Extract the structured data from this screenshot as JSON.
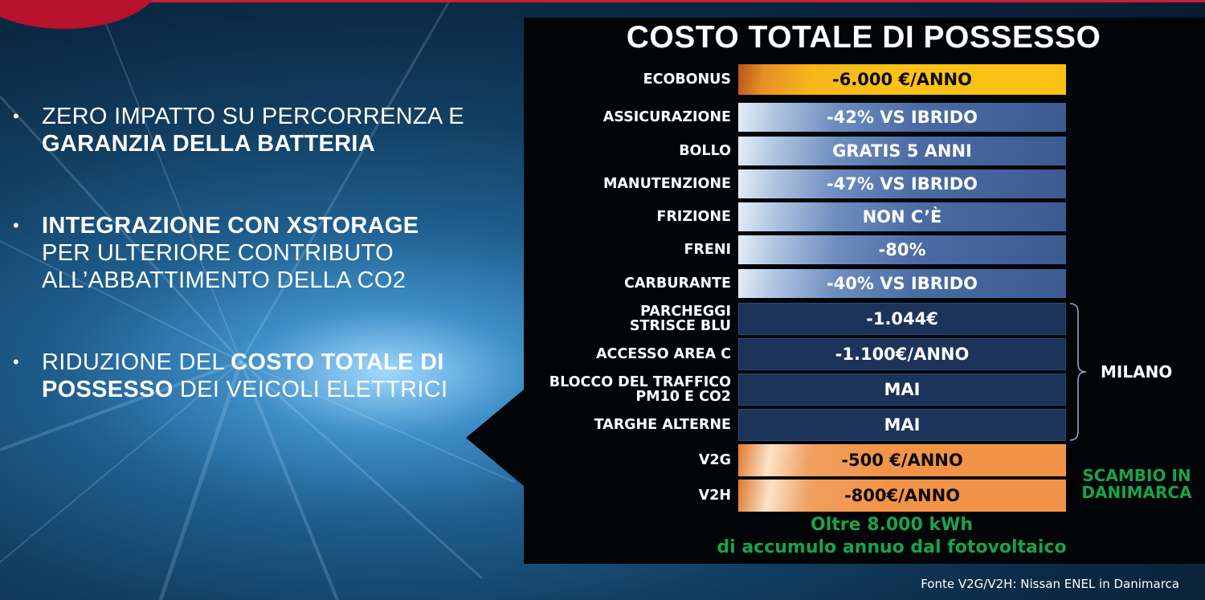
{
  "bullets": [
    {
      "lines": [
        [
          {
            "t": "ZERO IMPATTO SU PERCORRENZA E",
            "b": false
          }
        ],
        [
          {
            "t": "GARANZIA DELLA BATTERIA",
            "b": true
          }
        ]
      ]
    },
    {
      "lines": [
        [
          {
            "t": "INTEGRAZIONE CON XSTORAGE",
            "b": true
          }
        ],
        [
          {
            "t": "PER ULTERIORE CONTRIBUTO",
            "b": false
          }
        ],
        [
          {
            "t": "ALL’ABBATTIMENTO DELLA CO2",
            "b": false
          }
        ]
      ]
    },
    {
      "lines": [
        [
          {
            "t": "RIDUZIONE DEL ",
            "b": false
          },
          {
            "t": "COSTO TOTALE DI",
            "b": true
          }
        ],
        [
          {
            "t": "POSSESSO",
            "b": true
          },
          {
            "t": " DEI VEICOLI ELETTRICI",
            "b": false
          }
        ]
      ]
    }
  ],
  "bullet_symbol": "•",
  "table": {
    "title": "COSTO TOTALE DI POSSESSO",
    "rows": [
      {
        "label": [
          "ECOBONUS"
        ],
        "value": "-6.000 €/ANNO",
        "style": "yellow"
      },
      {
        "label": [
          "ASSICURAZIONE"
        ],
        "value": "-42% VS IBRIDO",
        "style": "blue"
      },
      {
        "label": [
          "BOLLO"
        ],
        "value": "GRATIS 5 ANNI",
        "style": "blue"
      },
      {
        "label": [
          "MANUTENZIONE"
        ],
        "value": "-47% VS IBRIDO",
        "style": "blue"
      },
      {
        "label": [
          "FRIZIONE"
        ],
        "value": "NON C’È",
        "style": "blue"
      },
      {
        "label": [
          "FRENI"
        ],
        "value": "-80%",
        "style": "blue"
      },
      {
        "label": [
          "CARBURANTE"
        ],
        "value": "-40% VS IBRIDO",
        "style": "blue"
      },
      {
        "label": [
          "PARCHEGGI",
          "STRISCE BLU"
        ],
        "value": "-1.044€",
        "style": "dark"
      },
      {
        "label": [
          "ACCESSO AREA C"
        ],
        "value": "-1.100€/ANNO",
        "style": "dark"
      },
      {
        "label": [
          "BLOCCO DEL TRAFFICO",
          "PM10 E CO2"
        ],
        "value": "MAI",
        "style": "dark"
      },
      {
        "label": [
          "TARGHE ALTERNE"
        ],
        "value": "MAI",
        "style": "dark"
      },
      {
        "label": [
          "V2G"
        ],
        "value": "-500 €/ANNO",
        "style": "orange"
      },
      {
        "label": [
          "V2H"
        ],
        "value": "-800€/ANNO",
        "style": "orange"
      }
    ]
  },
  "milano_label": "MILANO",
  "scambio_label": [
    "SCAMBIO IN",
    "DANIMARCA"
  ],
  "oltre_label": [
    "Oltre 8.000 kWh",
    "di accumulo annuo dal fotovoltaico"
  ],
  "fonte": "Fonte V2G/V2H: Nissan ENEL in Danimarca",
  "colors": {
    "yellow": "#fbc114",
    "orange": "#f29447",
    "green": "#1aa34a",
    "accent_red": "#b7122e"
  }
}
